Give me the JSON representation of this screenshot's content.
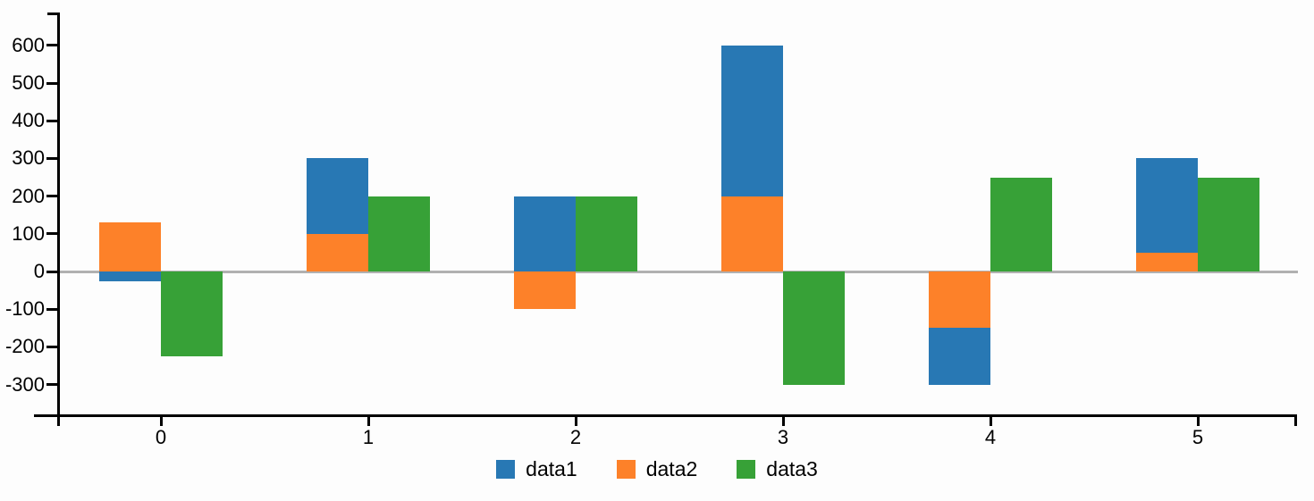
{
  "chart_data": {
    "type": "bar",
    "variant": "stacked-with-adjacent-bar",
    "title": "",
    "xlabel": "",
    "ylabel": "",
    "categories": [
      "0",
      "1",
      "2",
      "3",
      "4",
      "5"
    ],
    "series": [
      {
        "name": "data1",
        "color": "#2878b4",
        "values": [
          -25,
          200,
          200,
          400,
          -150,
          250
        ]
      },
      {
        "name": "data2",
        "color": "#fd8129",
        "values": [
          130,
          100,
          -100,
          200,
          -150,
          50
        ]
      },
      {
        "name": "data3",
        "color": "#37a137",
        "values": [
          -225,
          200,
          200,
          -300,
          250,
          250
        ]
      }
    ],
    "stack_order": [
      "data2",
      "data1"
    ],
    "offset_series": "data3",
    "y_ticks": [
      600,
      500,
      400,
      300,
      200,
      100,
      0,
      -100,
      -200,
      -300
    ],
    "ylim": [
      -382,
      688
    ],
    "grid": false,
    "zero_line_color": "#b1b1b1",
    "axis_color": "#000000",
    "legend": {
      "position": "bottom",
      "items": [
        "data1",
        "data2",
        "data3"
      ]
    }
  }
}
